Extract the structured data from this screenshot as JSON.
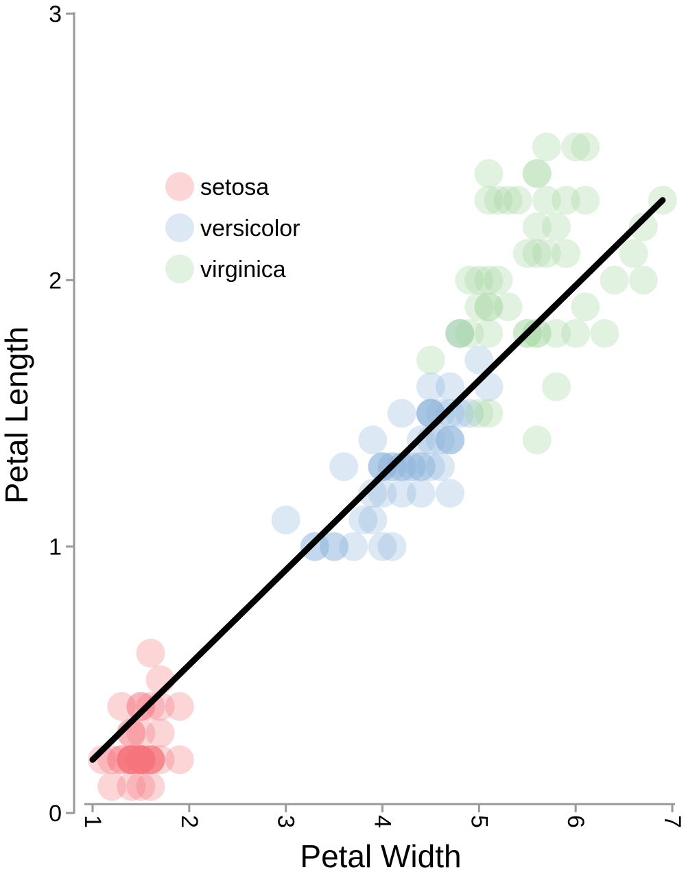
{
  "chart_data": {
    "type": "scatter",
    "title": "",
    "xlabel": "Petal Width",
    "ylabel": "Petal Length",
    "xlim": [
      1,
      7
    ],
    "ylim": [
      0,
      3
    ],
    "xticks": [
      "1",
      "2",
      "3",
      "4",
      "5",
      "6",
      "7"
    ],
    "yticks": [
      "0",
      "1",
      "2",
      "3"
    ],
    "grid": false,
    "legend_position": "top-left",
    "point_opacity": 0.3,
    "series": [
      {
        "name": "setosa",
        "color": "#f4737c",
        "points": [
          [
            1.1,
            0.2
          ],
          [
            1.2,
            0.1
          ],
          [
            1.2,
            0.2
          ],
          [
            1.3,
            0.2
          ],
          [
            1.3,
            0.4
          ],
          [
            1.3,
            0.2
          ],
          [
            1.4,
            0.2
          ],
          [
            1.4,
            0.2
          ],
          [
            1.4,
            0.3
          ],
          [
            1.4,
            0.2
          ],
          [
            1.4,
            0.2
          ],
          [
            1.4,
            0.3
          ],
          [
            1.4,
            0.2
          ],
          [
            1.4,
            0.1
          ],
          [
            1.5,
            0.2
          ],
          [
            1.5,
            0.2
          ],
          [
            1.5,
            0.4
          ],
          [
            1.5,
            0.2
          ],
          [
            1.5,
            0.2
          ],
          [
            1.5,
            0.1
          ],
          [
            1.5,
            0.2
          ],
          [
            1.5,
            0.4
          ],
          [
            1.5,
            0.3
          ],
          [
            1.5,
            0.2
          ],
          [
            1.6,
            0.2
          ],
          [
            1.6,
            0.2
          ],
          [
            1.6,
            0.4
          ],
          [
            1.6,
            0.2
          ],
          [
            1.6,
            0.6
          ],
          [
            1.6,
            0.2
          ],
          [
            1.6,
            0.1
          ],
          [
            1.7,
            0.5
          ],
          [
            1.7,
            0.2
          ],
          [
            1.7,
            0.3
          ],
          [
            1.7,
            0.4
          ],
          [
            1.9,
            0.4
          ],
          [
            1.9,
            0.2
          ],
          [
            1.4,
            0.2
          ],
          [
            1.5,
            0.2
          ],
          [
            1.5,
            0.2
          ]
        ]
      },
      {
        "name": "versicolor",
        "color": "#8ab4d9",
        "points": [
          [
            3.0,
            1.1
          ],
          [
            3.3,
            1.0
          ],
          [
            3.3,
            1.0
          ],
          [
            3.5,
            1.0
          ],
          [
            3.5,
            1.0
          ],
          [
            3.6,
            1.3
          ],
          [
            3.7,
            1.0
          ],
          [
            3.8,
            1.1
          ],
          [
            3.9,
            1.4
          ],
          [
            3.9,
            1.2
          ],
          [
            3.9,
            1.1
          ],
          [
            4.0,
            1.3
          ],
          [
            4.0,
            1.3
          ],
          [
            4.0,
            1.0
          ],
          [
            4.0,
            1.2
          ],
          [
            4.0,
            1.3
          ],
          [
            4.1,
            1.0
          ],
          [
            4.1,
            1.3
          ],
          [
            4.1,
            1.3
          ],
          [
            4.2,
            1.3
          ],
          [
            4.2,
            1.5
          ],
          [
            4.2,
            1.2
          ],
          [
            4.2,
            1.3
          ],
          [
            4.3,
            1.3
          ],
          [
            4.3,
            1.3
          ],
          [
            4.4,
            1.4
          ],
          [
            4.4,
            1.2
          ],
          [
            4.4,
            1.3
          ],
          [
            4.4,
            1.3
          ],
          [
            4.5,
            1.5
          ],
          [
            4.5,
            1.5
          ],
          [
            4.5,
            1.6
          ],
          [
            4.5,
            1.3
          ],
          [
            4.5,
            1.5
          ],
          [
            4.5,
            1.5
          ],
          [
            4.5,
            1.4
          ],
          [
            4.6,
            1.5
          ],
          [
            4.6,
            1.4
          ],
          [
            4.6,
            1.3
          ],
          [
            4.7,
            1.4
          ],
          [
            4.7,
            1.6
          ],
          [
            4.7,
            1.4
          ],
          [
            4.7,
            1.2
          ],
          [
            4.7,
            1.5
          ],
          [
            4.7,
            1.4
          ],
          [
            4.8,
            1.5
          ],
          [
            4.9,
            1.5
          ],
          [
            5.0,
            1.7
          ],
          [
            5.1,
            1.6
          ],
          [
            4.8,
            1.8
          ]
        ]
      },
      {
        "name": "virginica",
        "color": "#9fd59c",
        "points": [
          [
            4.5,
            1.7
          ],
          [
            4.8,
            1.8
          ],
          [
            4.8,
            1.8
          ],
          [
            4.9,
            1.8
          ],
          [
            4.9,
            2.0
          ],
          [
            5.0,
            2.0
          ],
          [
            5.0,
            1.5
          ],
          [
            5.0,
            1.9
          ],
          [
            5.1,
            1.9
          ],
          [
            5.1,
            2.0
          ],
          [
            5.1,
            1.5
          ],
          [
            5.1,
            1.9
          ],
          [
            5.1,
            2.3
          ],
          [
            5.1,
            1.8
          ],
          [
            5.1,
            2.4
          ],
          [
            5.2,
            2.3
          ],
          [
            5.2,
            2.0
          ],
          [
            5.3,
            2.3
          ],
          [
            5.3,
            1.9
          ],
          [
            5.4,
            2.3
          ],
          [
            5.5,
            2.1
          ],
          [
            5.5,
            1.8
          ],
          [
            5.5,
            1.8
          ],
          [
            5.6,
            2.4
          ],
          [
            5.6,
            2.2
          ],
          [
            5.6,
            2.1
          ],
          [
            5.6,
            1.8
          ],
          [
            5.6,
            1.4
          ],
          [
            5.6,
            2.4
          ],
          [
            5.6,
            1.8
          ],
          [
            5.7,
            2.3
          ],
          [
            5.7,
            2.5
          ],
          [
            5.7,
            2.1
          ],
          [
            5.8,
            2.2
          ],
          [
            5.8,
            1.8
          ],
          [
            5.8,
            1.6
          ],
          [
            5.9,
            2.1
          ],
          [
            5.9,
            2.3
          ],
          [
            6.0,
            2.5
          ],
          [
            6.0,
            1.8
          ],
          [
            6.1,
            2.5
          ],
          [
            6.1,
            2.3
          ],
          [
            6.1,
            1.9
          ],
          [
            6.3,
            1.8
          ],
          [
            6.4,
            2.0
          ],
          [
            6.6,
            2.1
          ],
          [
            6.7,
            2.2
          ],
          [
            6.7,
            2.0
          ],
          [
            6.9,
            2.3
          ]
        ]
      }
    ],
    "trendline": {
      "type": "linear",
      "color": "#000000",
      "points": [
        [
          1.0,
          0.2
        ],
        [
          6.9,
          2.3
        ]
      ]
    }
  }
}
